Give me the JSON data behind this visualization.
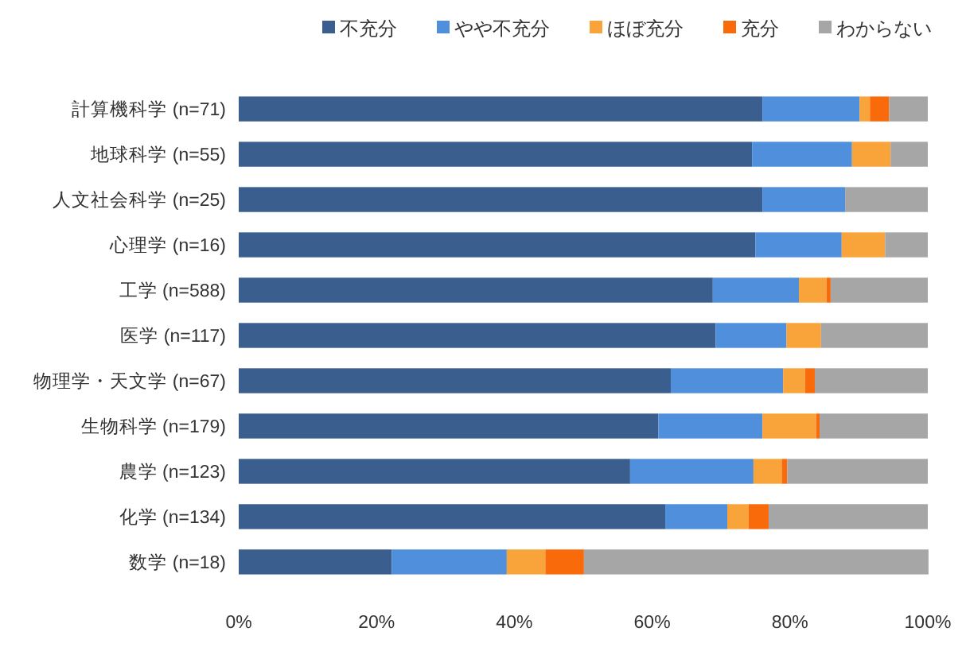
{
  "chart_data": {
    "type": "bar",
    "orientation": "horizontal",
    "stacked": true,
    "legend": "top",
    "categories": [
      "計算機科学 (n=71)",
      "地球科学 (n=55)",
      "人文社会科学 (n=25)",
      "心理学 (n=16)",
      "工学 (n=588)",
      "医学 (n=117)",
      "物理学・天文学 (n=67)",
      "生物科学 (n=179)",
      "農学 (n=123)",
      "化学 (n=134)",
      "数学 (n=18)"
    ],
    "series": [
      {
        "name": "不充分",
        "color": "#3a5f8f",
        "values": [
          76.0,
          74.5,
          76.0,
          75.0,
          68.8,
          69.2,
          62.7,
          60.9,
          56.8,
          61.9,
          22.2
        ]
      },
      {
        "name": "やや不充分",
        "color": "#4f8fdb",
        "values": [
          14.1,
          14.5,
          12.0,
          12.5,
          12.5,
          10.3,
          16.3,
          15.1,
          17.9,
          9.0,
          16.7
        ]
      },
      {
        "name": "ほぼ充分",
        "color": "#f9a43a",
        "values": [
          1.5,
          5.6,
          0,
          6.3,
          4.0,
          5.0,
          3.2,
          7.8,
          4.1,
          3.1,
          5.6
        ]
      },
      {
        "name": "充分",
        "color": "#f96a0a",
        "values": [
          2.8,
          0,
          0,
          0,
          0.6,
          0,
          1.4,
          0.5,
          0.8,
          2.9,
          5.6
        ]
      },
      {
        "name": "わからない",
        "color": "#a6a6a6",
        "values": [
          5.6,
          5.4,
          12.0,
          6.2,
          14.1,
          15.5,
          16.4,
          15.7,
          20.4,
          23.1,
          50.0
        ]
      }
    ],
    "xlim": [
      0,
      100
    ],
    "xticks": [
      {
        "value": 0,
        "label": "0%"
      },
      {
        "value": 20,
        "label": "20%"
      },
      {
        "value": 40,
        "label": "40%"
      },
      {
        "value": 60,
        "label": "60%"
      },
      {
        "value": 80,
        "label": "80%"
      },
      {
        "value": 100,
        "label": "100%"
      }
    ]
  }
}
